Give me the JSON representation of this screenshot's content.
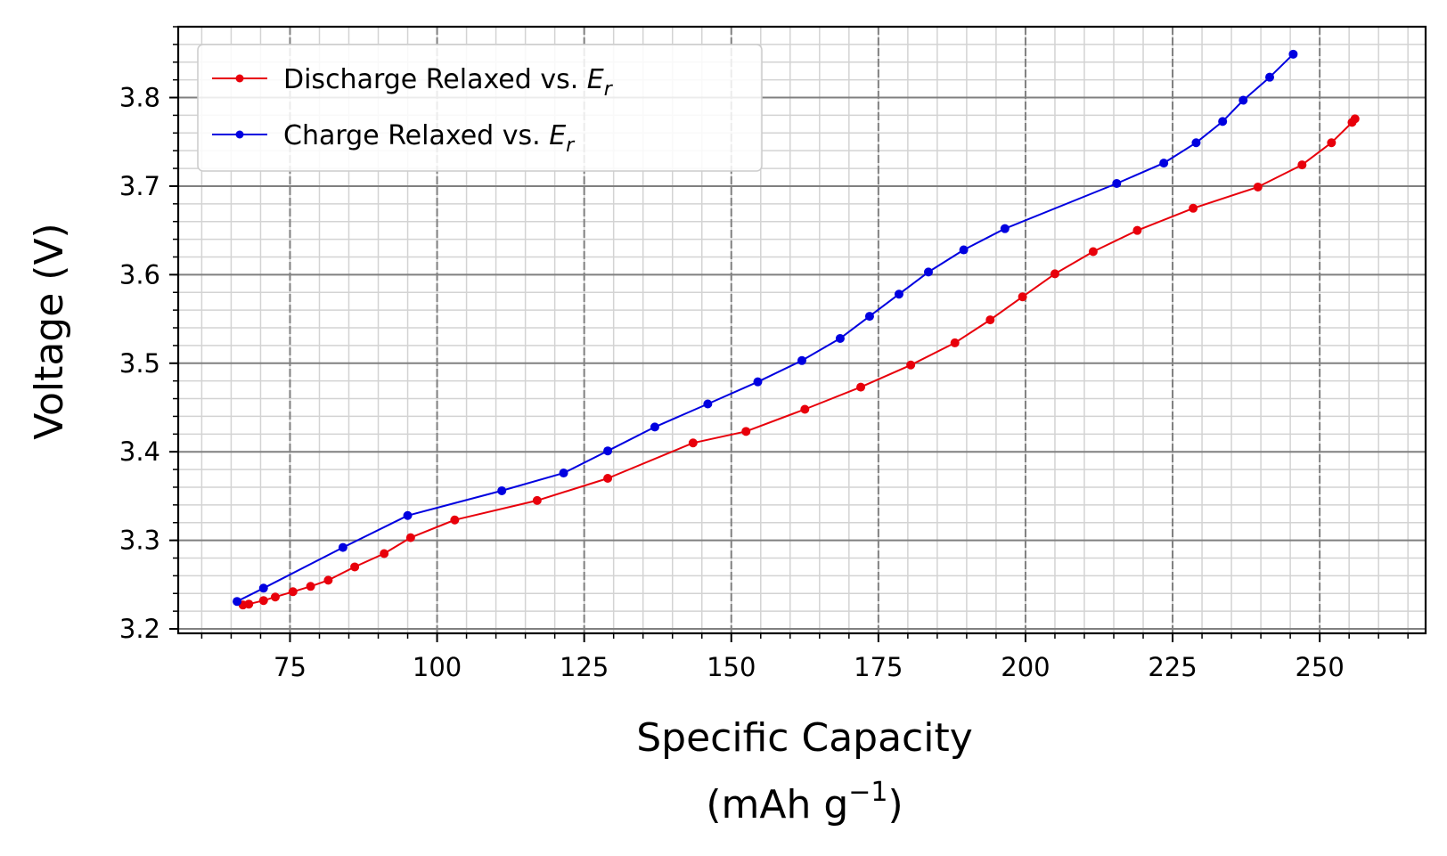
{
  "chart_data": {
    "type": "line",
    "title": "",
    "xlabel": "Specific Capacity",
    "xlabel_unit": "(mAh g",
    "xlabel_unit_sup": "−1",
    "xlabel_unit_close": ")",
    "ylabel": "Voltage (V)",
    "xlim": [
      56,
      268
    ],
    "ylim": [
      3.195,
      3.88
    ],
    "xticks": [
      75,
      100,
      125,
      150,
      175,
      200,
      225,
      250
    ],
    "xtick_labels": [
      "75",
      "100",
      "125",
      "150",
      "175",
      "200",
      "225",
      "250"
    ],
    "yticks": [
      3.2,
      3.3,
      3.4,
      3.5,
      3.6,
      3.7,
      3.8
    ],
    "ytick_labels": [
      "3.2",
      "3.3",
      "3.4",
      "3.5",
      "3.6",
      "3.7",
      "3.8"
    ],
    "grid": {
      "major": true,
      "minor": true
    },
    "legend_position": "upper-left",
    "series": [
      {
        "name": "Discharge Relaxed vs. ",
        "name_math": "E",
        "name_sub": "r",
        "color": "#e8000b",
        "x": [
          67,
          68,
          70.5,
          72.5,
          75.5,
          78.5,
          81.5,
          86,
          91,
          95.5,
          103,
          117,
          129,
          143.5,
          152.5,
          162.5,
          172,
          180.5,
          188,
          194,
          199.5,
          205,
          211.5,
          219,
          228.5,
          239.5,
          247,
          252,
          255.5,
          256
        ],
        "y": [
          3.227,
          3.228,
          3.232,
          3.236,
          3.242,
          3.248,
          3.255,
          3.27,
          3.285,
          3.303,
          3.323,
          3.345,
          3.37,
          3.41,
          3.423,
          3.448,
          3.473,
          3.498,
          3.523,
          3.549,
          3.575,
          3.601,
          3.626,
          3.65,
          3.675,
          3.699,
          3.724,
          3.749,
          3.772,
          3.776
        ]
      },
      {
        "name": "Charge Relaxed vs. ",
        "name_math": "E",
        "name_sub": "r",
        "color": "#0000e0",
        "x": [
          66,
          70.5,
          84,
          95,
          111,
          121.5,
          129,
          137,
          146,
          154.5,
          162,
          168.5,
          173.5,
          178.5,
          183.5,
          189.5,
          196.5,
          215.5,
          223.5,
          229,
          233.5,
          237,
          241.5,
          245.5
        ],
        "y": [
          3.231,
          3.246,
          3.292,
          3.328,
          3.356,
          3.376,
          3.401,
          3.428,
          3.454,
          3.479,
          3.503,
          3.528,
          3.553,
          3.578,
          3.603,
          3.628,
          3.652,
          3.703,
          3.726,
          3.749,
          3.773,
          3.797,
          3.823,
          3.849
        ]
      }
    ]
  }
}
